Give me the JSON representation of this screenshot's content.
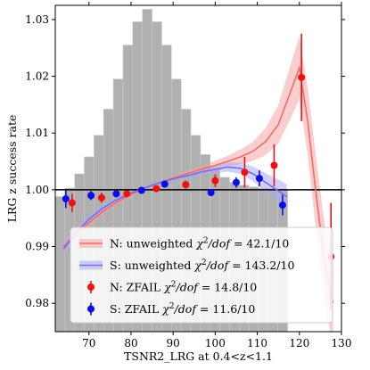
{
  "chart_data": {
    "type": "line",
    "xlabel": "TSNR2_LRG at 0.4<z<1.1",
    "ylabel": "LRG z success rate",
    "xlim": [
      62,
      130
    ],
    "ylim": [
      0.975,
      1.0325
    ],
    "x_ticks": [
      {
        "value": 70,
        "label": "70"
      },
      {
        "value": 80,
        "label": "80"
      },
      {
        "value": 90,
        "label": "90"
      },
      {
        "value": 100,
        "label": "100"
      },
      {
        "value": 110,
        "label": "110"
      },
      {
        "value": 120,
        "label": "120"
      },
      {
        "value": 130,
        "label": "130"
      }
    ],
    "y_ticks": [
      {
        "value": 0.98,
        "label": "0.98"
      },
      {
        "value": 0.99,
        "label": "0.99"
      },
      {
        "value": 1.0,
        "label": "1.00"
      },
      {
        "value": 1.01,
        "label": "1.01"
      },
      {
        "value": 1.02,
        "label": "1.02"
      },
      {
        "value": 1.03,
        "label": "1.03"
      }
    ],
    "reference_line": 1.0,
    "histogram": {
      "color": "#b0b0b0",
      "bin_edges": [
        62,
        64.3,
        66.6,
        68.9,
        71.2,
        73.5,
        75.8,
        78.1,
        80.4,
        82.7,
        85.0,
        87.3,
        89.6,
        91.9,
        94.2,
        96.5,
        98.8,
        101.1,
        103.4,
        105.7,
        108.0,
        110.3,
        112.6,
        114.9,
        117.2
      ],
      "heights": [
        0.9988,
        1.0003,
        1.0028,
        1.0058,
        1.0096,
        1.0142,
        1.0195,
        1.0255,
        1.0296,
        1.0318,
        1.0296,
        1.0255,
        1.0195,
        1.0142,
        1.0096,
        1.0062,
        1.0038,
        1.0022,
        1.0013,
        1.0008,
        1.0005,
        1.0003,
        1.0002,
        1.0001
      ]
    },
    "series": [
      {
        "name": "N: unweighted",
        "chi2": "42.1/10",
        "color": "#f06b6b",
        "band_color": "#f4a6a6",
        "x": [
          64,
          67,
          70,
          73,
          76,
          79,
          82,
          85,
          88,
          91,
          94,
          97,
          100,
          103,
          106,
          109,
          112,
          115,
          118,
          120,
          122,
          124,
          126,
          128
        ],
        "y": [
          0.99,
          0.9922,
          0.9942,
          0.996,
          0.9975,
          0.9988,
          0.9999,
          1.0008,
          1.0016,
          1.0023,
          1.003,
          1.0037,
          1.0043,
          1.005,
          1.0058,
          1.0068,
          1.0085,
          1.0115,
          1.0175,
          1.0215,
          1.012,
          0.999,
          0.987,
          0.98
        ],
        "band": [
          0.0012,
          0.001,
          0.0008,
          0.0006,
          0.0005,
          0.0004,
          0.0003,
          0.0003,
          0.0003,
          0.0004,
          0.0005,
          0.0006,
          0.0008,
          0.001,
          0.0013,
          0.0017,
          0.0024,
          0.0034,
          0.0048,
          0.0055,
          0.006,
          0.0065,
          0.007,
          0.0075
        ]
      },
      {
        "name": "S: unweighted",
        "chi2": "143.2/10",
        "color": "#6f6ff0",
        "band_color": "#a9a9f2",
        "x": [
          64,
          67,
          70,
          73,
          76,
          79,
          82,
          85,
          88,
          91,
          94,
          97,
          100,
          103,
          106,
          109,
          112,
          115,
          117
        ],
        "y": [
          0.9896,
          0.9925,
          0.9948,
          0.9966,
          0.998,
          0.9991,
          1.0,
          1.0008,
          1.0015,
          1.0021,
          1.0026,
          1.0032,
          1.0036,
          1.004,
          1.0038,
          1.0028,
          1.0013,
          0.9998,
          0.9988
        ],
        "band": [
          0.001,
          0.0008,
          0.0006,
          0.0005,
          0.0004,
          0.0003,
          0.0003,
          0.0003,
          0.0003,
          0.0003,
          0.0004,
          0.0005,
          0.0006,
          0.0008,
          0.001,
          0.0013,
          0.0016,
          0.002,
          0.0022
        ]
      },
      {
        "name": "N: ZFAIL",
        "chi2": "14.8/10",
        "color": "#ee1111",
        "points": [
          {
            "x": 66,
            "y": 0.9977,
            "err": 0.0016
          },
          {
            "x": 73,
            "y": 0.9986,
            "err": 0.0009
          },
          {
            "x": 79,
            "y": 0.9993,
            "err": 0.0006
          },
          {
            "x": 86,
            "y": 1.0002,
            "err": 0.0005
          },
          {
            "x": 93,
            "y": 1.0009,
            "err": 0.0007
          },
          {
            "x": 100,
            "y": 1.0016,
            "err": 0.0011
          },
          {
            "x": 107,
            "y": 1.0031,
            "err": 0.0027
          },
          {
            "x": 114,
            "y": 1.0043,
            "err": 0.0037
          },
          {
            "x": 120.5,
            "y": 1.0198,
            "err": 0.0077
          },
          {
            "x": 127.5,
            "y": 0.9882,
            "err": 0.0095
          }
        ]
      },
      {
        "name": "S: ZFAIL",
        "chi2": "11.6/10",
        "color": "#0c0ce6",
        "points": [
          {
            "x": 64.5,
            "y": 0.9984,
            "err": 0.0016
          },
          {
            "x": 70.5,
            "y": 0.999,
            "err": 0.0008
          },
          {
            "x": 76.5,
            "y": 0.9993,
            "err": 0.0006
          },
          {
            "x": 82.5,
            "y": 0.9999,
            "err": 0.0004
          },
          {
            "x": 88,
            "y": 1.001,
            "err": 0.0004
          },
          {
            "x": 99,
            "y": 0.9995,
            "err": 0.0006
          },
          {
            "x": 105,
            "y": 1.0013,
            "err": 0.0009
          },
          {
            "x": 110.5,
            "y": 1.002,
            "err": 0.0014
          },
          {
            "x": 116,
            "y": 0.9973,
            "err": 0.0018
          }
        ]
      }
    ],
    "legend": {
      "placement": "lower-left",
      "entries": [
        {
          "prefix": "N: unweighted ",
          "suffix": " = 42.1/10"
        },
        {
          "prefix": "S: unweighted ",
          "suffix": " = 143.2/10"
        },
        {
          "prefix": "N: ZFAIL ",
          "suffix": " = 14.8/10"
        },
        {
          "prefix": "S: ZFAIL ",
          "suffix": " = 11.6/10"
        }
      ],
      "chi2_symbol": "χ",
      "dof_symbol": "dof"
    },
    "grid": false
  }
}
